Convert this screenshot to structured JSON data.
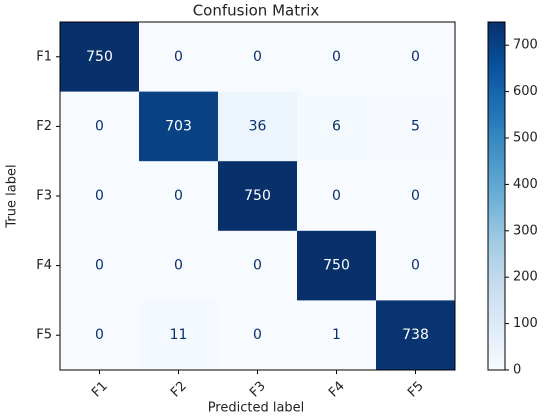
{
  "chart_data": {
    "type": "heatmap",
    "title": "Confusion Matrix",
    "x_label": "Predicted label",
    "y_label": "True label",
    "x_categories": [
      "F1",
      "F2",
      "F3",
      "F4",
      "F5"
    ],
    "y_categories": [
      "F1",
      "F2",
      "F3",
      "F4",
      "F5"
    ],
    "z": [
      [
        750,
        0,
        0,
        0,
        0
      ],
      [
        0,
        703,
        36,
        6,
        5
      ],
      [
        0,
        0,
        750,
        0,
        0
      ],
      [
        0,
        0,
        0,
        750,
        0
      ],
      [
        0,
        11,
        0,
        1,
        738
      ]
    ],
    "zlim": [
      0,
      750
    ],
    "zticks": [
      0,
      100,
      200,
      300,
      400,
      500,
      600,
      700
    ],
    "colorscale": [
      "#f7fbff",
      "#deebf7",
      "#c6dbef",
      "#9ecae1",
      "#6baed6",
      "#4292c6",
      "#2171b5",
      "#08519c",
      "#08306b"
    ],
    "low_text_color": "#08306b",
    "high_text_color": "#ffffff"
  }
}
